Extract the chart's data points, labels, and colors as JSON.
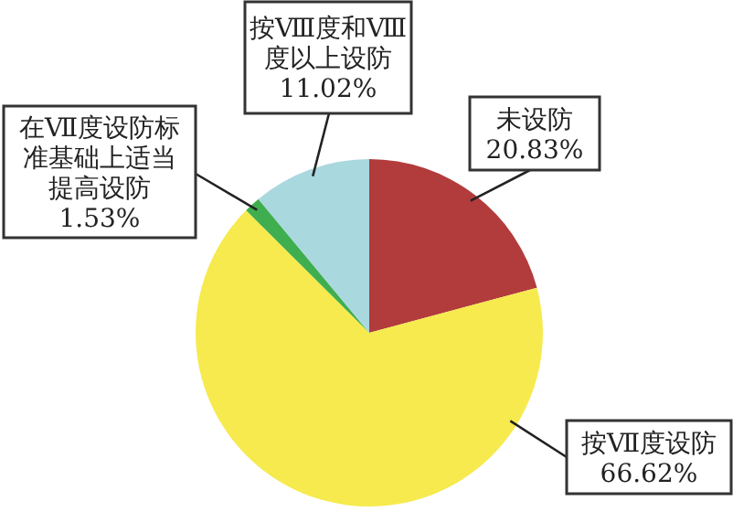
{
  "chart_data": {
    "type": "pie",
    "categories": [
      "未设防",
      "按Ⅶ度设防",
      "在Ⅶ度设防标准基础上适当提高设防",
      "按Ⅷ度和Ⅷ度以上设防"
    ],
    "values": [
      20.83,
      66.62,
      1.53,
      11.02
    ],
    "value_labels": [
      "20.83%",
      "66.62%",
      "1.53%",
      "11.02%"
    ],
    "colors": [
      "#b23c3c",
      "#f6ea4e",
      "#3fae4f",
      "#aad8df"
    ]
  }
}
